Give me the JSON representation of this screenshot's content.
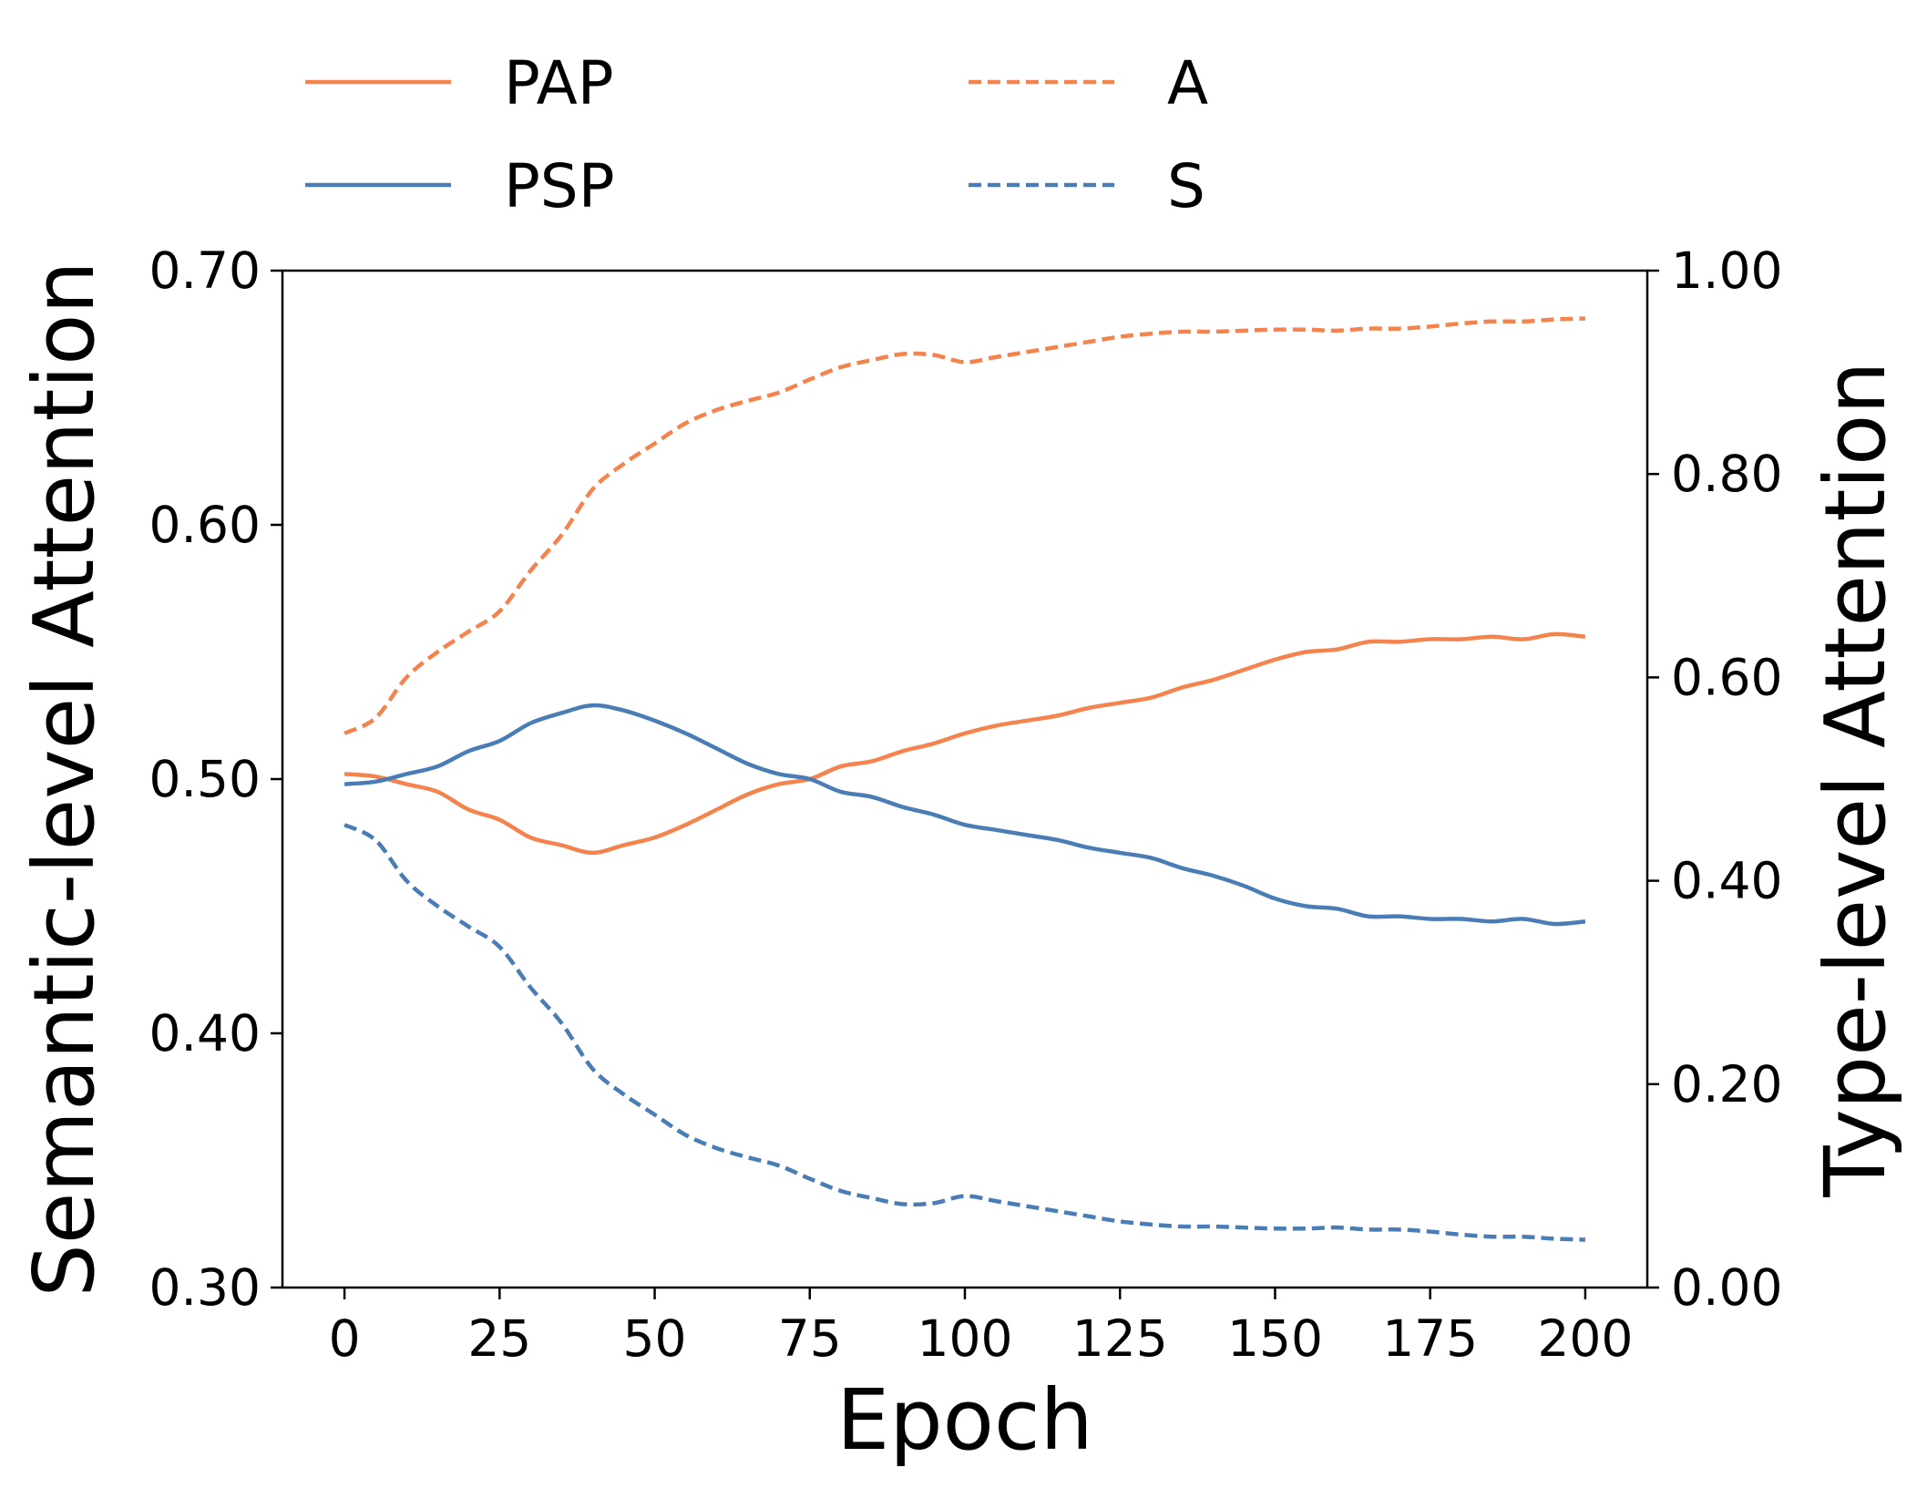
{
  "chart_data": {
    "type": "line",
    "title": "",
    "xlabel": "Epoch",
    "ylabel_left": "Semantic-level Attention",
    "ylabel_right": "Type-level Attention",
    "xlim": [
      -10,
      210
    ],
    "ylim_left": [
      0.3,
      0.7
    ],
    "ylim_right": [
      0.0,
      1.0
    ],
    "x_ticks": [
      0,
      25,
      50,
      75,
      100,
      125,
      150,
      175,
      200
    ],
    "x_tick_labels": [
      "0",
      "25",
      "50",
      "75",
      "100",
      "125",
      "150",
      "175",
      "200"
    ],
    "y_left_ticks": [
      0.3,
      0.4,
      0.5,
      0.6,
      0.7
    ],
    "y_left_tick_labels": [
      "0.30",
      "0.40",
      "0.50",
      "0.60",
      "0.70"
    ],
    "y_right_ticks": [
      0.0,
      0.2,
      0.4,
      0.6,
      0.8,
      1.0
    ],
    "y_right_tick_labels": [
      "0.00",
      "0.20",
      "0.40",
      "0.60",
      "0.80",
      "1.00"
    ],
    "grid": false,
    "legend_position": "top (above plot, two columns)",
    "x": [
      0,
      5,
      10,
      15,
      20,
      25,
      30,
      35,
      40,
      45,
      50,
      55,
      60,
      65,
      70,
      75,
      80,
      85,
      90,
      95,
      100,
      105,
      110,
      115,
      120,
      125,
      130,
      135,
      140,
      145,
      150,
      155,
      160,
      165,
      170,
      175,
      180,
      185,
      190,
      195,
      200
    ],
    "series": [
      {
        "name": "PAP",
        "axis": "left",
        "style": "solid",
        "color": "#F4834E",
        "values": [
          0.502,
          0.501,
          0.498,
          0.495,
          0.488,
          0.484,
          0.477,
          0.474,
          0.471,
          0.474,
          0.477,
          0.482,
          0.488,
          0.494,
          0.498,
          0.5,
          0.505,
          0.507,
          0.511,
          0.514,
          0.518,
          0.521,
          0.523,
          0.525,
          0.528,
          0.53,
          0.532,
          0.536,
          0.539,
          0.543,
          0.547,
          0.55,
          0.551,
          0.554,
          0.554,
          0.555,
          0.555,
          0.556,
          0.555,
          0.557,
          0.556
        ]
      },
      {
        "name": "PSP",
        "axis": "left",
        "style": "solid",
        "color": "#4A7DB5",
        "values": [
          0.498,
          0.499,
          0.502,
          0.505,
          0.511,
          0.515,
          0.522,
          0.526,
          0.529,
          0.527,
          0.523,
          0.518,
          0.512,
          0.506,
          0.502,
          0.5,
          0.495,
          0.493,
          0.489,
          0.486,
          0.482,
          0.48,
          0.478,
          0.476,
          0.473,
          0.471,
          0.469,
          0.465,
          0.462,
          0.458,
          0.453,
          0.45,
          0.449,
          0.446,
          0.446,
          0.445,
          0.445,
          0.444,
          0.445,
          0.443,
          0.444
        ]
      },
      {
        "name": "A",
        "axis": "right",
        "style": "dashed",
        "color": "#F4834E",
        "values": [
          0.545,
          0.56,
          0.6,
          0.625,
          0.645,
          0.665,
          0.705,
          0.74,
          0.785,
          0.81,
          0.83,
          0.85,
          0.863,
          0.872,
          0.88,
          0.893,
          0.905,
          0.912,
          0.918,
          0.917,
          0.91,
          0.915,
          0.92,
          0.925,
          0.93,
          0.935,
          0.938,
          0.94,
          0.94,
          0.941,
          0.942,
          0.942,
          0.941,
          0.943,
          0.943,
          0.945,
          0.948,
          0.95,
          0.95,
          0.952,
          0.953
        ]
      },
      {
        "name": "S",
        "axis": "right",
        "style": "dashed",
        "color": "#4A7DB5",
        "values": [
          0.455,
          0.44,
          0.4,
          0.375,
          0.355,
          0.335,
          0.295,
          0.26,
          0.215,
          0.19,
          0.17,
          0.15,
          0.137,
          0.128,
          0.12,
          0.107,
          0.095,
          0.088,
          0.082,
          0.083,
          0.09,
          0.085,
          0.08,
          0.075,
          0.07,
          0.065,
          0.062,
          0.06,
          0.06,
          0.059,
          0.058,
          0.058,
          0.059,
          0.057,
          0.057,
          0.055,
          0.052,
          0.05,
          0.05,
          0.048,
          0.047
        ]
      }
    ]
  }
}
